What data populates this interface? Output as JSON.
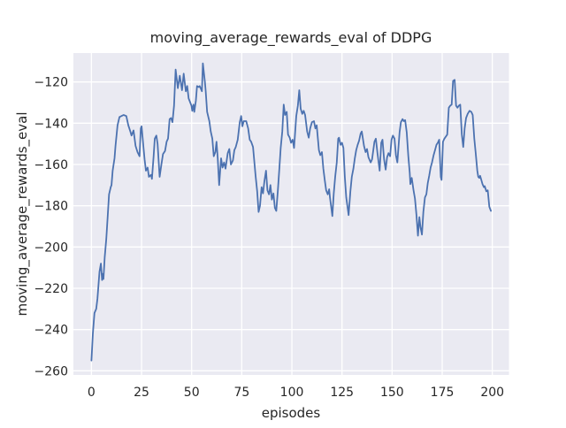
{
  "figure": {
    "title": "moving_average_rewards_eval of DDPG",
    "xlabel": "episodes",
    "ylabel": "moving_average_rewards_eval"
  },
  "colors": {
    "figure_bg": "#ffffff",
    "axes_bg": "#eaeaf2",
    "grid": "#ffffff",
    "line": "#4c72b0",
    "text": "#262626"
  },
  "chart_data": {
    "type": "line",
    "title": "moving_average_rewards_eval of DDPG",
    "xlabel": "episodes",
    "ylabel": "moving_average_rewards_eval",
    "grid": true,
    "legend": false,
    "xlim": [
      -9,
      208.3
    ],
    "ylim": [
      -262,
      -106
    ],
    "x_ticks": [
      0,
      25,
      50,
      75,
      100,
      125,
      150,
      175,
      200
    ],
    "x_tick_labels": [
      "0",
      "25",
      "50",
      "75",
      "100",
      "125",
      "150",
      "175",
      "200"
    ],
    "y_ticks": [
      -120,
      -140,
      -160,
      -180,
      -200,
      -220,
      -240,
      -260
    ],
    "y_tick_labels": [
      "−120",
      "−140",
      "−160",
      "−180",
      "−200",
      "−220",
      "−240",
      "−260"
    ],
    "series": [
      {
        "name": "moving_average_rewards_eval",
        "color": "#4c72b0",
        "points": [
          [
            0,
            -255
          ],
          [
            0.7,
            -242
          ],
          [
            1.5,
            -232
          ],
          [
            2.4,
            -230
          ],
          [
            3,
            -225
          ],
          [
            4,
            -212
          ],
          [
            4.7,
            -208
          ],
          [
            5.3,
            -216
          ],
          [
            5.7,
            -213
          ],
          [
            6,
            -215.5
          ],
          [
            6.6,
            -205
          ],
          [
            7.4,
            -196
          ],
          [
            8.1,
            -185
          ],
          [
            8.8,
            -174.5
          ],
          [
            9.6,
            -171
          ],
          [
            10,
            -170
          ],
          [
            10.6,
            -163
          ],
          [
            11.5,
            -157
          ],
          [
            12,
            -151
          ],
          [
            13,
            -141
          ],
          [
            14,
            -137
          ],
          [
            15,
            -136.5
          ],
          [
            16,
            -136
          ],
          [
            17.4,
            -136.5
          ],
          [
            18.4,
            -141
          ],
          [
            19.4,
            -144
          ],
          [
            20,
            -146
          ],
          [
            21,
            -143.5
          ],
          [
            22,
            -151
          ],
          [
            23,
            -154
          ],
          [
            24,
            -156
          ],
          [
            24.6,
            -142.5
          ],
          [
            25,
            -141.5
          ],
          [
            26,
            -152
          ],
          [
            26.5,
            -157.5
          ],
          [
            27.2,
            -163
          ],
          [
            28,
            -161.5
          ],
          [
            28.7,
            -166
          ],
          [
            29.7,
            -165
          ],
          [
            30.2,
            -167
          ],
          [
            31,
            -156
          ],
          [
            31.6,
            -147.5
          ],
          [
            32.4,
            -146
          ],
          [
            33,
            -150
          ],
          [
            34,
            -166
          ],
          [
            34.9,
            -160
          ],
          [
            35.7,
            -155
          ],
          [
            36.7,
            -153.5
          ],
          [
            37.5,
            -149
          ],
          [
            38.2,
            -147.5
          ],
          [
            39,
            -138
          ],
          [
            39.7,
            -137.5
          ],
          [
            40.4,
            -139.5
          ],
          [
            41.2,
            -131.5
          ],
          [
            42,
            -114
          ],
          [
            43.1,
            -123
          ],
          [
            44.1,
            -117
          ],
          [
            45.2,
            -124
          ],
          [
            46,
            -116
          ],
          [
            47.1,
            -124.5
          ],
          [
            47.8,
            -122
          ],
          [
            48.5,
            -128
          ],
          [
            49.9,
            -131.5
          ],
          [
            50.3,
            -134
          ],
          [
            50.9,
            -131
          ],
          [
            51.3,
            -134.5
          ],
          [
            52.1,
            -129
          ],
          [
            52.7,
            -122
          ],
          [
            53.6,
            -122.5
          ],
          [
            54,
            -122
          ],
          [
            55.1,
            -124.5
          ],
          [
            55.6,
            -111
          ],
          [
            56.6,
            -120
          ],
          [
            57,
            -124.5
          ],
          [
            57.7,
            -134.5
          ],
          [
            58.8,
            -139
          ],
          [
            59.5,
            -144
          ],
          [
            60.3,
            -147.5
          ],
          [
            61,
            -156
          ],
          [
            61.8,
            -154
          ],
          [
            62.4,
            -149
          ],
          [
            63,
            -157
          ],
          [
            63.7,
            -170
          ],
          [
            64.7,
            -157
          ],
          [
            65.4,
            -161.5
          ],
          [
            66.2,
            -159
          ],
          [
            66.9,
            -162
          ],
          [
            68,
            -154.5
          ],
          [
            68.8,
            -152.5
          ],
          [
            69.6,
            -160
          ],
          [
            70.6,
            -158
          ],
          [
            71.3,
            -153
          ],
          [
            72,
            -151.5
          ],
          [
            73,
            -148
          ],
          [
            74,
            -139.5
          ],
          [
            74.7,
            -136.5
          ],
          [
            75.3,
            -141.5
          ],
          [
            76,
            -139
          ],
          [
            77.2,
            -139
          ],
          [
            78.2,
            -142.5
          ],
          [
            79,
            -148
          ],
          [
            79.7,
            -149
          ],
          [
            80.6,
            -151.5
          ],
          [
            81.9,
            -165.5
          ],
          [
            82.7,
            -173
          ],
          [
            83.4,
            -183
          ],
          [
            84.1,
            -180
          ],
          [
            84.9,
            -171
          ],
          [
            85.6,
            -174
          ],
          [
            86.3,
            -168
          ],
          [
            87.1,
            -163
          ],
          [
            87.8,
            -172.5
          ],
          [
            88.6,
            -174.5
          ],
          [
            89.3,
            -170
          ],
          [
            90,
            -177
          ],
          [
            90.8,
            -174
          ],
          [
            91.5,
            -181
          ],
          [
            92.2,
            -182.5
          ],
          [
            93,
            -172.5
          ],
          [
            93.7,
            -162.5
          ],
          [
            94.4,
            -152
          ],
          [
            95.2,
            -144
          ],
          [
            95.9,
            -131
          ],
          [
            96.6,
            -136
          ],
          [
            97.4,
            -134.5
          ],
          [
            98.1,
            -145.5
          ],
          [
            98.9,
            -147
          ],
          [
            99.6,
            -149.5
          ],
          [
            100.4,
            -148
          ],
          [
            101.1,
            -152
          ],
          [
            102.2,
            -136.5
          ],
          [
            103,
            -131.5
          ],
          [
            103.7,
            -124
          ],
          [
            104.4,
            -133
          ],
          [
            105.2,
            -135.5
          ],
          [
            105.9,
            -134
          ],
          [
            106.6,
            -136
          ],
          [
            107.6,
            -144
          ],
          [
            108.4,
            -147
          ],
          [
            109.1,
            -142.5
          ],
          [
            110,
            -139.5
          ],
          [
            111,
            -139
          ],
          [
            111.7,
            -142.5
          ],
          [
            112.4,
            -141
          ],
          [
            113.5,
            -153
          ],
          [
            114.2,
            -155.5
          ],
          [
            115,
            -154
          ],
          [
            115.7,
            -162
          ],
          [
            116.4,
            -167.5
          ],
          [
            117.1,
            -172.5
          ],
          [
            117.9,
            -174.5
          ],
          [
            118.6,
            -172
          ],
          [
            119,
            -176
          ],
          [
            120.2,
            -185
          ],
          [
            120.9,
            -174
          ],
          [
            121.6,
            -166
          ],
          [
            122.4,
            -159
          ],
          [
            123.1,
            -147.5
          ],
          [
            123.5,
            -147
          ],
          [
            124.3,
            -150.5
          ],
          [
            125,
            -149.5
          ],
          [
            125.7,
            -152
          ],
          [
            126.4,
            -166
          ],
          [
            127.1,
            -176
          ],
          [
            128.3,
            -184.5
          ],
          [
            129.2,
            -173
          ],
          [
            129.9,
            -166
          ],
          [
            130.7,
            -162
          ],
          [
            131.4,
            -157
          ],
          [
            132.1,
            -153
          ],
          [
            132.8,
            -150.5
          ],
          [
            133.5,
            -148.5
          ],
          [
            134.3,
            -145
          ],
          [
            134.9,
            -144
          ],
          [
            136,
            -151
          ],
          [
            136.8,
            -154
          ],
          [
            137.5,
            -152.5
          ],
          [
            138.2,
            -156.5
          ],
          [
            139.3,
            -159
          ],
          [
            140,
            -157.5
          ],
          [
            141.2,
            -149
          ],
          [
            141.9,
            -147.5
          ],
          [
            142.7,
            -154.5
          ],
          [
            143.8,
            -163
          ],
          [
            144.6,
            -149.5
          ],
          [
            145.2,
            -148
          ],
          [
            146,
            -157.5
          ],
          [
            146.8,
            -162.5
          ],
          [
            147.5,
            -156.5
          ],
          [
            148.2,
            -154.5
          ],
          [
            149,
            -156
          ],
          [
            149.7,
            -148
          ],
          [
            150.4,
            -146
          ],
          [
            151.2,
            -147.5
          ],
          [
            151.9,
            -155.5
          ],
          [
            152.6,
            -159
          ],
          [
            153.7,
            -144.5
          ],
          [
            154.4,
            -139.5
          ],
          [
            155.2,
            -138
          ],
          [
            155.9,
            -139
          ],
          [
            156.5,
            -138.5
          ],
          [
            157.3,
            -144.5
          ],
          [
            158.1,
            -156
          ],
          [
            158.8,
            -164
          ],
          [
            159.1,
            -169.5
          ],
          [
            159.8,
            -166.5
          ],
          [
            160.7,
            -172.5
          ],
          [
            161.4,
            -176.5
          ],
          [
            162.1,
            -184
          ],
          [
            162.9,
            -194.5
          ],
          [
            163.6,
            -185.5
          ],
          [
            164.2,
            -190.5
          ],
          [
            164.9,
            -194
          ],
          [
            165.6,
            -183
          ],
          [
            166.4,
            -176
          ],
          [
            167.1,
            -174.5
          ],
          [
            167.8,
            -169
          ],
          [
            168.5,
            -165.5
          ],
          [
            169.2,
            -161.5
          ],
          [
            169.9,
            -159
          ],
          [
            170.7,
            -155.5
          ],
          [
            171.4,
            -153
          ],
          [
            172.1,
            -150.5
          ],
          [
            172.8,
            -149.5
          ],
          [
            173.5,
            -148
          ],
          [
            174.3,
            -166
          ],
          [
            174.7,
            -167.5
          ],
          [
            175.4,
            -149
          ],
          [
            176.1,
            -147.5
          ],
          [
            176.8,
            -146.5
          ],
          [
            177.5,
            -145.5
          ],
          [
            178.3,
            -132.5
          ],
          [
            179,
            -131.5
          ],
          [
            179.7,
            -131
          ],
          [
            180.4,
            -119.5
          ],
          [
            181.2,
            -119
          ],
          [
            181.9,
            -131.5
          ],
          [
            182.6,
            -132.5
          ],
          [
            183.3,
            -131.5
          ],
          [
            184,
            -131
          ],
          [
            184.8,
            -145.5
          ],
          [
            185.5,
            -151.5
          ],
          [
            186.2,
            -142.5
          ],
          [
            186.9,
            -137.5
          ],
          [
            187.7,
            -135.5
          ],
          [
            188.6,
            -134
          ],
          [
            189.5,
            -134.5
          ],
          [
            190.2,
            -136
          ],
          [
            191,
            -147.5
          ],
          [
            191.7,
            -154.5
          ],
          [
            192.5,
            -163
          ],
          [
            193,
            -166
          ],
          [
            193.5,
            -166.5
          ],
          [
            193.9,
            -165.5
          ],
          [
            195.1,
            -169.5
          ],
          [
            195.8,
            -171
          ],
          [
            196.2,
            -170.5
          ],
          [
            197,
            -173
          ],
          [
            197.7,
            -172.5
          ],
          [
            198.5,
            -180.5
          ],
          [
            199.3,
            -182.5
          ]
        ]
      }
    ]
  }
}
